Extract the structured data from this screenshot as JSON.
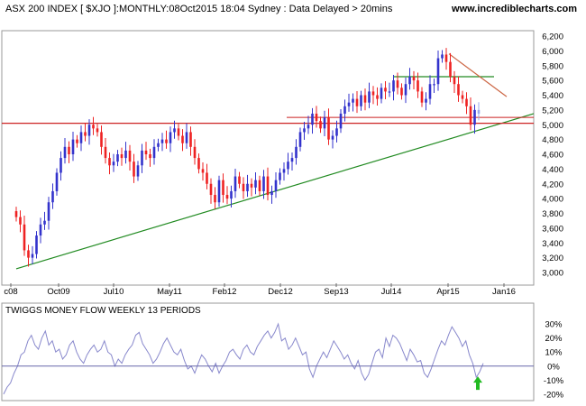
{
  "header": {
    "title": "ASX 200 INDEX [ $XJO ]:MONTHLY:08Oct2015 18:04 Sydney : Data Delayed > 20mins",
    "site": "www.incrediblecharts.com"
  },
  "indicator": {
    "title": "TWIGGS MONEY FLOW WEEKLY 13 PERIODS"
  },
  "colors": {
    "up": "#3333cc",
    "down": "#ee2222",
    "current": "#99aaee",
    "trend": "#228b22",
    "resistance": "#cc2222",
    "flow": "#8888cc",
    "arrow": "#22bb22"
  },
  "chart_data": [
    {
      "type": "candlestick",
      "title": "ASX 200 INDEX [ $XJO ]:MONTHLY:08Oct2015 18:04 Sydney : Data Delayed > 20mins",
      "x_tick_labels": [
        "c08",
        "Oct09",
        "Jul10",
        "May11",
        "Feb12",
        "Dec12",
        "Sep13",
        "Jul14",
        "Apr15",
        "Jan16"
      ],
      "y_tick_labels": [
        "3,000",
        "3,200",
        "3,400",
        "3,600",
        "3,800",
        "4,000",
        "4,200",
        "4,400",
        "4,600",
        "4,800",
        "5,000",
        "5,200",
        "5,400",
        "5,600",
        "5,800",
        "6,000",
        "6,200"
      ],
      "ylim": [
        2950,
        6300
      ],
      "ohlc_note": "values are close estimates per weekly bar",
      "close": [
        3750,
        3650,
        3300,
        3200,
        3250,
        3500,
        3650,
        3700,
        3950,
        4100,
        4350,
        4550,
        4700,
        4600,
        4800,
        4750,
        4900,
        4850,
        5000,
        4950,
        4900,
        4700,
        4550,
        4450,
        4500,
        4600,
        4550,
        4650,
        4500,
        4300,
        4450,
        4650,
        4600,
        4550,
        4700,
        4750,
        4800,
        4750,
        4900,
        4950,
        4850,
        4750,
        4900,
        4700,
        4550,
        4400,
        4350,
        4200,
        4050,
        3950,
        4250,
        4050,
        4000,
        4100,
        4300,
        4200,
        4100,
        4200,
        4150,
        4250,
        4100,
        4300,
        4050,
        4100,
        4250,
        4350,
        4400,
        4500,
        4550,
        4700,
        4900,
        4950,
        5000,
        5150,
        5050,
        4950,
        5100,
        4800,
        4850,
        4950,
        5150,
        5250,
        5300,
        5350,
        5250,
        5400,
        5300,
        5450,
        5400,
        5350,
        5500,
        5450,
        5450,
        5600,
        5500,
        5400,
        5550,
        5650,
        5600,
        5450,
        5300,
        5350,
        5550,
        5550,
        5900,
        5950,
        5850,
        5650,
        5550,
        5400,
        5350,
        5250,
        5000,
        5200,
        5150
      ],
      "lines": [
        {
          "kind": "trendline",
          "color": "#228b22",
          "from": {
            "x": "c08",
            "y": 3050
          }
        },
        {
          "kind": "horizontal",
          "color": "#228b22",
          "y": 5650
        },
        {
          "kind": "horizontal",
          "color": "#cc2222",
          "y": 5020
        },
        {
          "kind": "horizontal",
          "color": "#cc2222",
          "y": 5100
        },
        {
          "kind": "trendline",
          "color": "#cc6644",
          "from": {
            "x": "Apr15",
            "y": 5960
          },
          "to_y": 5380
        }
      ]
    },
    {
      "type": "line",
      "title": "TWIGGS MONEY FLOW WEEKLY 13 PERIODS",
      "y_tick_labels": [
        "30%",
        "20%",
        "10%",
        "0%",
        "-10%",
        "-20%"
      ],
      "ylim": [
        -22,
        32
      ],
      "values": [
        -20,
        -15,
        -12,
        -5,
        0,
        8,
        10,
        18,
        22,
        15,
        12,
        20,
        25,
        15,
        18,
        10,
        12,
        5,
        8,
        15,
        18,
        10,
        5,
        2,
        8,
        12,
        15,
        10,
        12,
        18,
        10,
        8,
        0,
        5,
        2,
        8,
        12,
        15,
        22,
        24,
        16,
        12,
        8,
        2,
        5,
        10,
        16,
        20,
        15,
        10,
        8,
        12,
        4,
        -2,
        0,
        -5,
        2,
        8,
        5,
        0,
        -4,
        2,
        -5,
        0,
        4,
        10,
        12,
        8,
        5,
        12,
        15,
        10,
        8,
        14,
        18,
        22,
        25,
        20,
        24,
        30,
        18,
        20,
        12,
        15,
        20,
        14,
        8,
        10,
        -2,
        -8,
        0,
        5,
        10,
        6,
        12,
        18,
        14,
        10,
        5,
        8,
        2,
        -2,
        4,
        -5,
        -10,
        -6,
        2,
        10,
        12,
        6,
        20,
        14,
        22,
        20,
        16,
        10,
        4,
        12,
        8,
        3,
        4,
        -5,
        -8,
        -2,
        5,
        12,
        18,
        15,
        22,
        28,
        24,
        20,
        14,
        18,
        8,
        2,
        -8,
        -4,
        2
      ]
    }
  ]
}
